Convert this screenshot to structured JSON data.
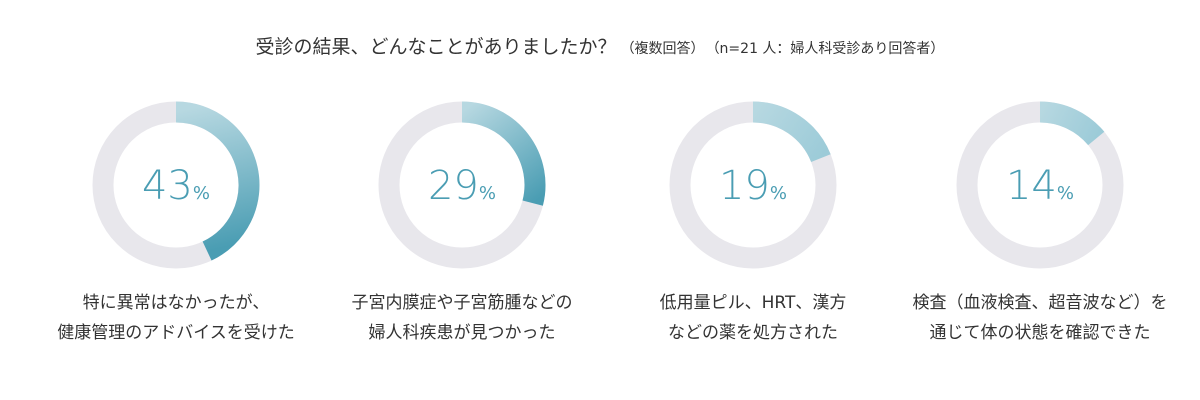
{
  "chart_data": {
    "type": "pie",
    "variant": "donut",
    "title": "受診の結果、どんなことがありましたか？",
    "subtitle_note": "（複数回答）",
    "sample_note": "（n=21 人：婦人科受診あり回答者）",
    "unit": "%",
    "items": [
      {
        "value": 43,
        "label_line1": "特に異常はなかったが、",
        "label_line2": "健康管理のアドバイスを受けた"
      },
      {
        "value": 29,
        "label_line1": "子宮内膜症や子宮筋腫などの",
        "label_line2": "婦人科疾患が見つかった"
      },
      {
        "value": 19,
        "label_line1": "低用量ピル、HRT、漢方",
        "label_line2": "などの薬を処方された"
      },
      {
        "value": 14,
        "label_line1": "検査（血液検査、超音波など）を",
        "label_line2": "通じて体の状態を確認できた"
      }
    ],
    "colors": {
      "track": "#e8e7ec",
      "arc_start": "#b7d8e1",
      "arc_end": "#4a9db3",
      "value_text": "#4a9db3"
    }
  }
}
